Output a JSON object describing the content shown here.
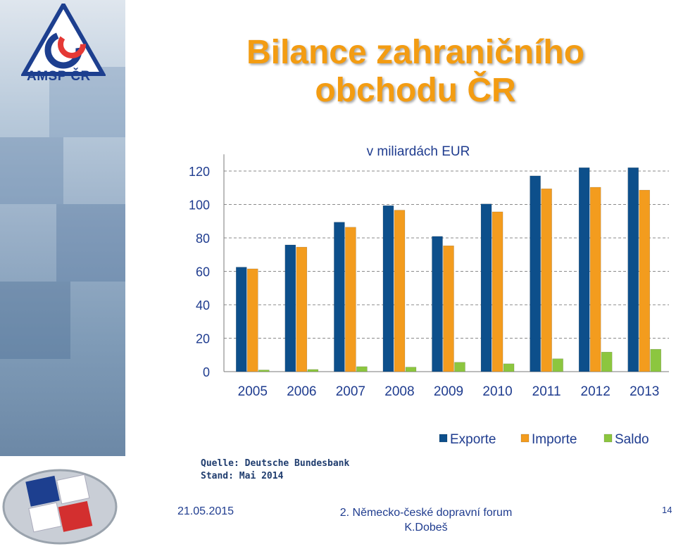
{
  "logo": {
    "text": "AMSP ČR"
  },
  "title": {
    "line1": "Bilance zahraničního",
    "line2": "obchodu ČR"
  },
  "source": {
    "line1": "Quelle: Deutsche Bundesbank",
    "line2": "Stand: Mai 2014"
  },
  "footer": {
    "date": "21.05.2015",
    "event": "2. Německo-české dopravní forum",
    "author": "K.Dobeš",
    "page": "14"
  },
  "colors": {
    "exporte": "#0d4f8b",
    "importe": "#f39c1e",
    "saldo": "#8cc63f",
    "title": "#f39c12",
    "text": "#1f3c8f"
  },
  "chart_data": {
    "type": "bar",
    "subtitle": "v miliardách EUR",
    "categories": [
      "2005",
      "2006",
      "2007",
      "2008",
      "2009",
      "2010",
      "2011",
      "2012",
      "2013"
    ],
    "series": [
      {
        "name": "Exporte",
        "values": [
          62.5,
          75.8,
          89.4,
          99.3,
          80.9,
          100.3,
          117.1,
          122.0,
          122.0
        ]
      },
      {
        "name": "Importe",
        "values": [
          61.5,
          74.5,
          86.4,
          96.6,
          75.3,
          95.6,
          109.4,
          110.3,
          108.6
        ]
      },
      {
        "name": "Saldo",
        "values": [
          1.0,
          1.3,
          3.0,
          2.7,
          5.6,
          4.7,
          7.7,
          11.7,
          13.4
        ]
      }
    ],
    "yticks": [
      0,
      20,
      40,
      60,
      80,
      100,
      120
    ],
    "ylim": [
      0,
      130
    ],
    "grid": true,
    "legend": "bottom-right"
  }
}
